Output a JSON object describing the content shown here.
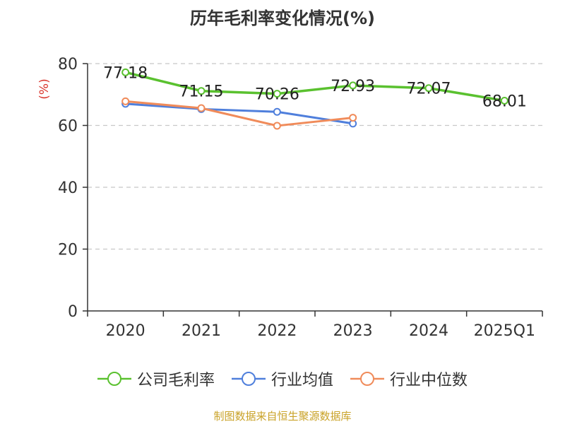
{
  "title": "历年毛利率变化情况(%)",
  "source": "制图数据来自恒生聚源数据库",
  "chart_data": {
    "type": "line",
    "title": "历年毛利率变化情况(%)",
    "ylabel": "(%)",
    "xlabel": "",
    "categories": [
      "2020",
      "2021",
      "2022",
      "2023",
      "2024",
      "2025Q1"
    ],
    "ylim": [
      0,
      80
    ],
    "yticks": [
      0,
      20,
      40,
      60,
      80
    ],
    "grid": "horizontal dashed",
    "legend_position": "bottom",
    "series": [
      {
        "name": "公司毛利率",
        "color": "#5ac12f",
        "values": [
          77.18,
          71.15,
          70.26,
          72.93,
          72.07,
          68.01
        ],
        "labels": [
          "77.18",
          "71.15",
          "70.26",
          "72.93",
          "72.07",
          "68.01"
        ]
      },
      {
        "name": "行业均值",
        "color": "#4f7fdc",
        "values": [
          67.0,
          65.3,
          64.4,
          60.6,
          null,
          null
        ]
      },
      {
        "name": "行业中位数",
        "color": "#f08b5a",
        "values": [
          67.8,
          65.6,
          59.9,
          62.5,
          null,
          null
        ]
      }
    ]
  }
}
